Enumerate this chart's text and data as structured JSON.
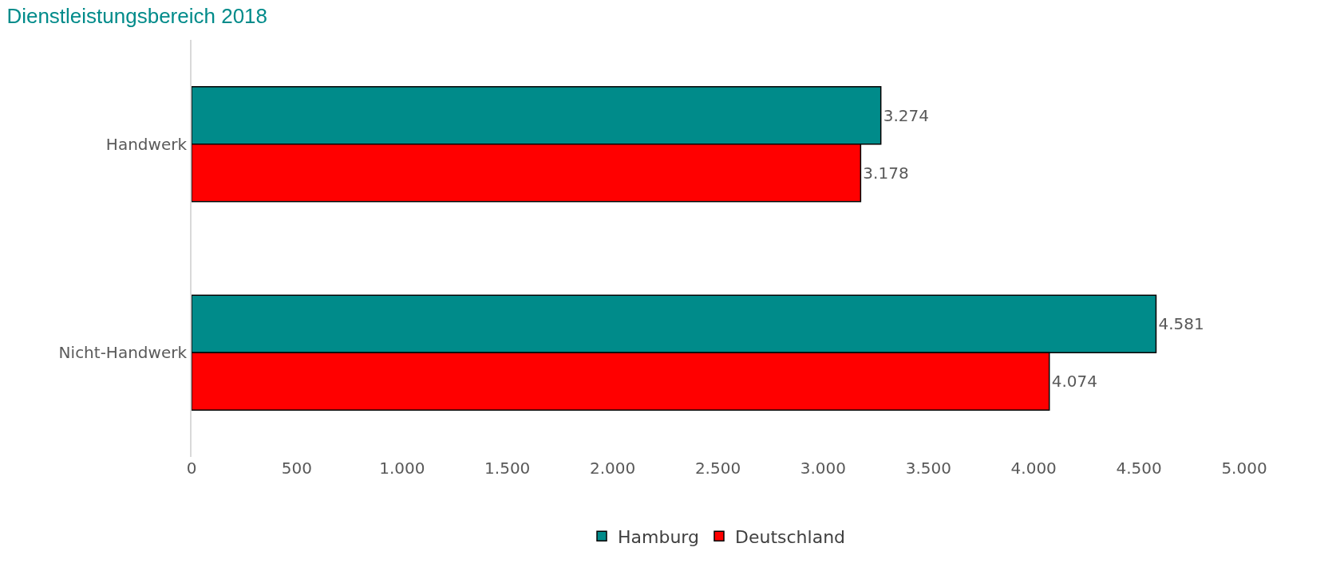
{
  "chart_data": {
    "type": "bar",
    "orientation": "horizontal",
    "title": "Dienstleistungsbereich 2018",
    "categories": [
      "Handwerk",
      "Nicht-Handwerk"
    ],
    "series": [
      {
        "name": "Hamburg",
        "color": "#008b8a",
        "values": [
          3274,
          4581
        ],
        "value_labels": [
          "3.274",
          "4.581"
        ]
      },
      {
        "name": "Deutschland",
        "color": "#ff0000",
        "values": [
          3178,
          4074
        ],
        "value_labels": [
          "3.178",
          "4.074"
        ]
      }
    ],
    "xlim": [
      0,
      5000
    ],
    "xticks": [
      0,
      500,
      {
        "value": 1000,
        "label": "1.000"
      },
      {
        "value": 1500,
        "label": "1.500"
      },
      {
        "value": 2000,
        "label": "2.000"
      },
      {
        "value": 2500,
        "label": "2.500"
      },
      {
        "value": 3000,
        "label": "3.000"
      },
      {
        "value": 3500,
        "label": "3.500"
      },
      {
        "value": 4000,
        "label": "4.000"
      },
      {
        "value": 4500,
        "label": "4.500"
      },
      {
        "value": 5000,
        "label": "5.000"
      }
    ],
    "grid": false,
    "legend": "bottom"
  }
}
